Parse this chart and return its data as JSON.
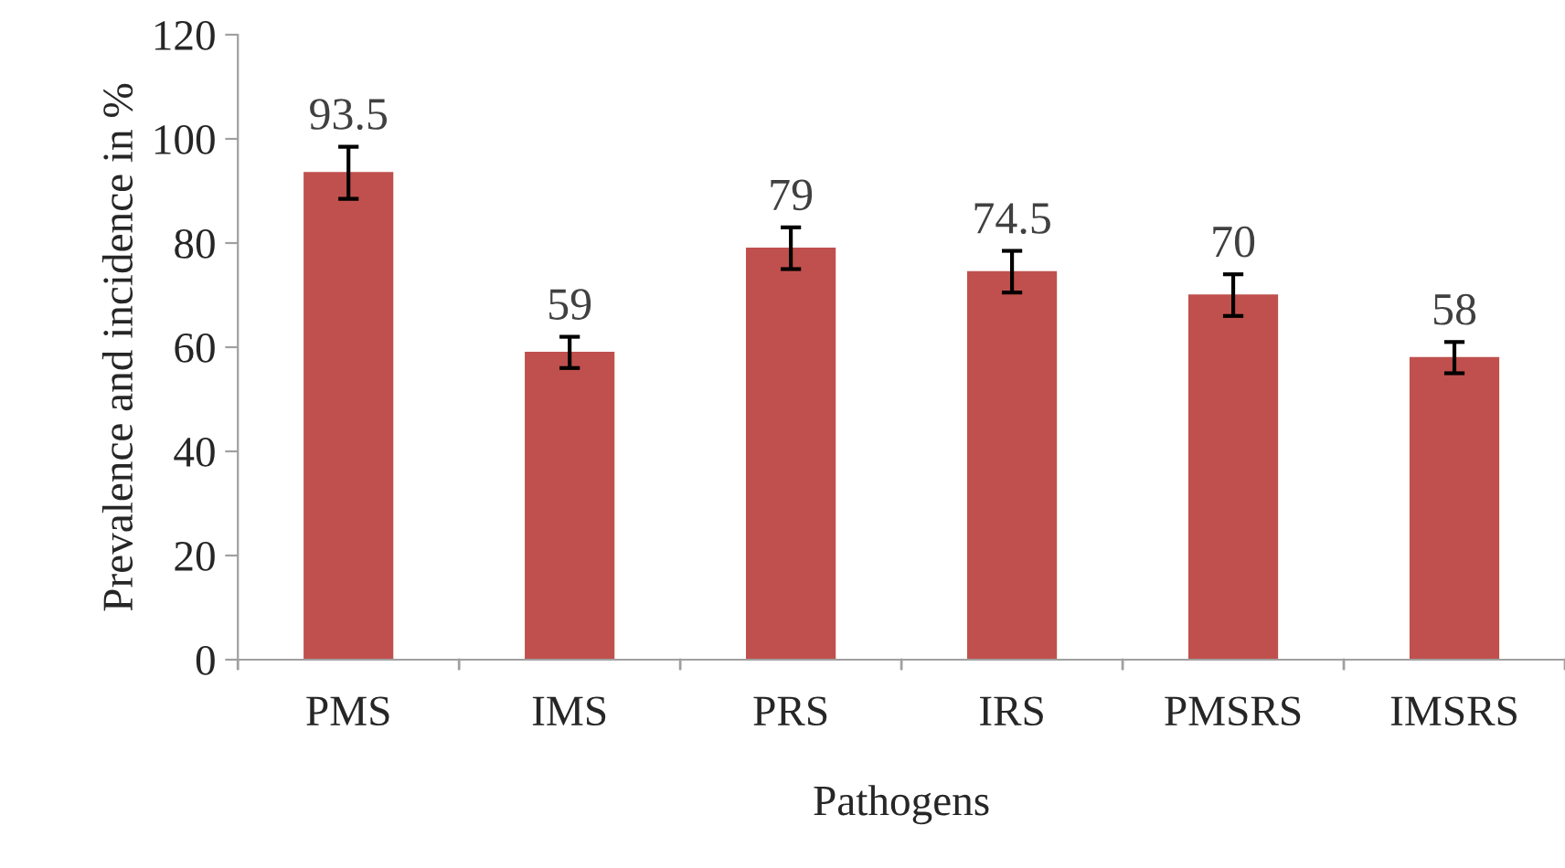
{
  "chart_data": {
    "type": "bar",
    "xlabel": "Pathogens",
    "ylabel": "Prevalence and incidence in %",
    "categories": [
      "PMS",
      "IMS",
      "PRS",
      "IRS",
      "PMSRS",
      "IMSRS"
    ],
    "values": [
      93.5,
      59,
      79,
      74.5,
      70,
      58
    ],
    "errors": [
      5,
      3,
      4,
      4,
      4,
      3
    ],
    "color": "#c0504d",
    "ylim": [
      0,
      120
    ],
    "yticks": [
      0,
      20,
      40,
      60,
      80,
      100,
      120
    ],
    "data_labels": true,
    "grid": false,
    "legend": false
  }
}
